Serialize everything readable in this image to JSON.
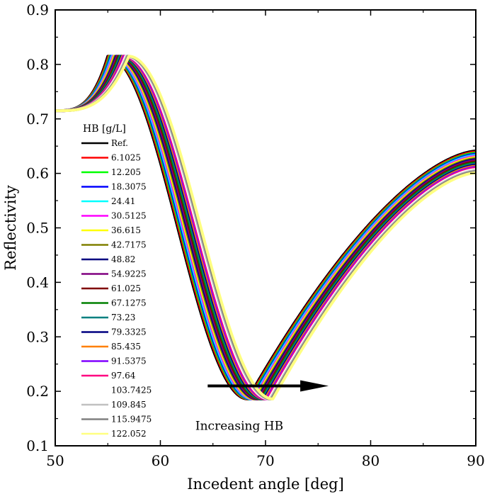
{
  "chart_data": {
    "type": "line",
    "title": "",
    "xlabel": "Incedent angle [deg]",
    "ylabel": "Reflectivity",
    "xlim": [
      50,
      90
    ],
    "ylim": [
      0.1,
      0.9
    ],
    "xticks": [
      50,
      60,
      70,
      80,
      90
    ],
    "xtick_labels": [
      "50",
      "60",
      "70",
      "80",
      "90"
    ],
    "yticks": [
      0.1,
      0.2,
      0.3,
      0.4,
      0.5,
      0.6,
      0.7,
      0.8,
      0.9
    ],
    "ytick_labels": [
      "0.1",
      "0.2",
      "0.3",
      "0.4",
      "0.5",
      "0.6",
      "0.7",
      "0.8",
      "0.9"
    ],
    "grid": false,
    "legend_title": "HB [g/L]",
    "legend_position": "left",
    "annotation": {
      "text": "Increasing HB",
      "arrow_from_x": 64.5,
      "arrow_to_x": 76,
      "arrow_y": 0.21,
      "text_x": 64,
      "text_y": 0.123
    },
    "series": [
      {
        "name": "Ref.",
        "color": "#000000",
        "resonance_angle": 68.3,
        "edge_angle": 55.0,
        "final_value": 0.641
      },
      {
        "name": "6.1025",
        "color": "#ff0000",
        "resonance_angle": 68.42,
        "edge_angle": 55.1,
        "final_value": 0.639
      },
      {
        "name": "12.205",
        "color": "#00ff00",
        "resonance_angle": 68.54,
        "edge_angle": 55.2,
        "final_value": 0.637
      },
      {
        "name": "18.3075",
        "color": "#0000ff",
        "resonance_angle": 68.66,
        "edge_angle": 55.3,
        "final_value": 0.635
      },
      {
        "name": "24.41",
        "color": "#00ffff",
        "resonance_angle": 68.78,
        "edge_angle": 55.4,
        "final_value": 0.633
      },
      {
        "name": "30.5125",
        "color": "#ff00ff",
        "resonance_angle": 68.9,
        "edge_angle": 55.5,
        "final_value": 0.631
      },
      {
        "name": "36.615",
        "color": "#ffff00",
        "resonance_angle": 69.02,
        "edge_angle": 55.6,
        "final_value": 0.629
      },
      {
        "name": "42.7175",
        "color": "#808000",
        "resonance_angle": 69.14,
        "edge_angle": 55.7,
        "final_value": 0.627
      },
      {
        "name": "48.82",
        "color": "#000080",
        "resonance_angle": 69.26,
        "edge_angle": 55.8,
        "final_value": 0.625
      },
      {
        "name": "54.9225",
        "color": "#800080",
        "resonance_angle": 69.38,
        "edge_angle": 55.9,
        "final_value": 0.623
      },
      {
        "name": "61.025",
        "color": "#800000",
        "resonance_angle": 69.5,
        "edge_angle": 56.0,
        "final_value": 0.621
      },
      {
        "name": "67.1275",
        "color": "#008000",
        "resonance_angle": 69.62,
        "edge_angle": 56.1,
        "final_value": 0.619
      },
      {
        "name": "73.23",
        "color": "#008080",
        "resonance_angle": 69.74,
        "edge_angle": 56.2,
        "final_value": 0.617
      },
      {
        "name": "79.3325",
        "color": "#000080",
        "resonance_angle": 69.86,
        "edge_angle": 56.3,
        "final_value": 0.615
      },
      {
        "name": "85.435",
        "color": "#ff8000",
        "resonance_angle": 69.98,
        "edge_angle": 56.4,
        "final_value": 0.613
      },
      {
        "name": "91.5375",
        "color": "#8000ff",
        "resonance_angle": 70.1,
        "edge_angle": 56.5,
        "final_value": 0.611
      },
      {
        "name": "97.64",
        "color": "#ff0080",
        "resonance_angle": 70.22,
        "edge_angle": 56.6,
        "final_value": 0.609
      },
      {
        "name": "103.7425",
        "color": "#ffffff",
        "resonance_angle": 70.34,
        "edge_angle": 56.7,
        "final_value": 0.607
      },
      {
        "name": "109.845",
        "color": "#c0c0c0",
        "resonance_angle": 70.46,
        "edge_angle": 56.8,
        "final_value": 0.605
      },
      {
        "name": "115.9475",
        "color": "#808080",
        "resonance_angle": 70.58,
        "edge_angle": 56.9,
        "final_value": 0.603
      },
      {
        "name": "122.052",
        "color": "#ffff80",
        "resonance_angle": 70.7,
        "edge_angle": 57.0,
        "final_value": 0.601
      }
    ],
    "curve_shape": {
      "start_value": 0.715,
      "edge_peak_value": 0.815,
      "min_value": 0.186
    }
  }
}
